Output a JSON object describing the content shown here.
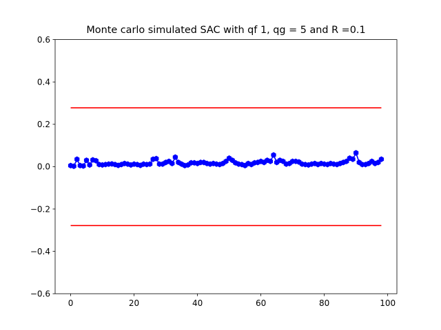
{
  "chart_data": {
    "type": "line",
    "title": "Monte carlo simulated SAC with qf 1, qg = 5 and R =0.1",
    "xlabel": "",
    "ylabel": "",
    "xlim": [
      -4.9,
      102.9
    ],
    "ylim": [
      -0.6,
      0.6
    ],
    "x_ticks": [
      0,
      20,
      40,
      60,
      80,
      100
    ],
    "x_tick_labels": [
      "0",
      "20",
      "40",
      "60",
      "80",
      "100"
    ],
    "y_ticks": [
      -0.6,
      -0.4,
      -0.2,
      0.0,
      0.2,
      0.4,
      0.6
    ],
    "y_tick_labels": [
      "−0.6",
      "−0.4",
      "−0.2",
      "0.0",
      "0.2",
      "0.4",
      "0.6"
    ],
    "grid": false,
    "series": [
      {
        "role": "sac",
        "color": "#0000ff",
        "marker": "hexagon",
        "x_start": 0,
        "x_step": 1,
        "values": [
          0.005,
          0.002,
          0.035,
          0.005,
          0.003,
          0.03,
          0.008,
          0.032,
          0.028,
          0.01,
          0.008,
          0.01,
          0.012,
          0.013,
          0.01,
          0.006,
          0.01,
          0.015,
          0.012,
          0.008,
          0.012,
          0.01,
          0.006,
          0.012,
          0.01,
          0.012,
          0.035,
          0.038,
          0.012,
          0.012,
          0.02,
          0.025,
          0.015,
          0.045,
          0.02,
          0.012,
          0.005,
          0.008,
          0.018,
          0.018,
          0.015,
          0.02,
          0.02,
          0.015,
          0.012,
          0.015,
          0.012,
          0.01,
          0.015,
          0.025,
          0.04,
          0.03,
          0.018,
          0.012,
          0.01,
          0.005,
          0.015,
          0.01,
          0.018,
          0.02,
          0.025,
          0.02,
          0.03,
          0.025,
          0.055,
          0.02,
          0.03,
          0.025,
          0.012,
          0.015,
          0.025,
          0.025,
          0.022,
          0.012,
          0.01,
          0.008,
          0.012,
          0.015,
          0.01,
          0.015,
          0.012,
          0.01,
          0.015,
          0.012,
          0.01,
          0.015,
          0.02,
          0.025,
          0.04,
          0.035,
          0.065,
          0.02,
          0.01,
          0.01,
          0.015,
          0.025,
          0.015,
          0.02,
          0.035
        ]
      },
      {
        "role": "upper-bound",
        "color": "#ff0000",
        "x": [
          0,
          98
        ],
        "values": [
          0.278,
          0.278
        ]
      },
      {
        "role": "lower-bound",
        "color": "#ff0000",
        "x": [
          0,
          98
        ],
        "values": [
          -0.278,
          -0.278
        ]
      }
    ]
  }
}
